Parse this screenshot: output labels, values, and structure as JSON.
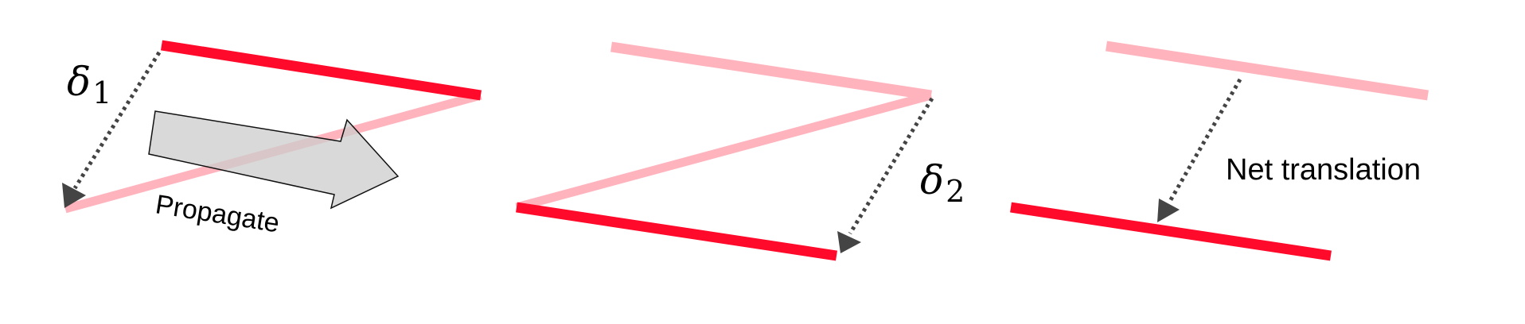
{
  "colors": {
    "active_segment": "#ff0a2b",
    "faded_segment": "#ffb3bd",
    "arrow_fill": "#cccccc",
    "arrow_stroke": "#111111",
    "dotted": "#444444",
    "text": "#000000"
  },
  "labels": {
    "delta1_symbol": "δ",
    "delta1_sub": "1",
    "propagate": "Propagate",
    "delta2_symbol": "δ",
    "delta2_sub": "2",
    "net_translation": "Net translation"
  }
}
